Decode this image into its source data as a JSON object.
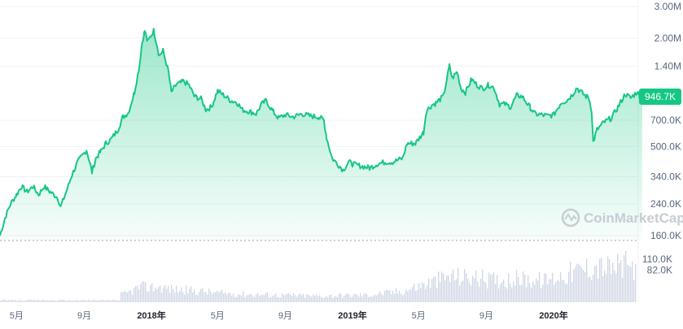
{
  "watermark": "CoinMarketCap",
  "colors": {
    "line": "#16c784",
    "volume": "#cfd6e4",
    "grid": "#eff2f5",
    "badge": "#16c784",
    "text": "#58667e"
  },
  "chart_data": [
    {
      "type": "area",
      "scale": "log",
      "ylim": [
        140000,
        3000000
      ],
      "grid": true,
      "y_ticks": [
        {
          "label": "3.00M",
          "value": 3000000
        },
        {
          "label": "2.00M",
          "value": 2000000
        },
        {
          "label": "1.40M",
          "value": 1400000
        },
        {
          "label": "700.0K",
          "value": 700000
        },
        {
          "label": "500.0K",
          "value": 500000
        },
        {
          "label": "340.0K",
          "value": 340000
        },
        {
          "label": "240.0K",
          "value": 240000
        },
        {
          "label": "160.0K",
          "value": 160000
        }
      ],
      "x_ticks": [
        {
          "label": "5月",
          "date": "2017-05-01",
          "bold": false
        },
        {
          "label": "9月",
          "date": "2017-09-01",
          "bold": false
        },
        {
          "label": "2018年",
          "date": "2018-01-01",
          "bold": true
        },
        {
          "label": "5月",
          "date": "2018-05-01",
          "bold": false
        },
        {
          "label": "9月",
          "date": "2018-09-01",
          "bold": false
        },
        {
          "label": "2019年",
          "date": "2019-01-01",
          "bold": true
        },
        {
          "label": "5月",
          "date": "2019-05-01",
          "bold": false
        },
        {
          "label": "9月",
          "date": "2019-09-01",
          "bold": false
        },
        {
          "label": "2020年",
          "date": "2020-01-01",
          "bold": true
        }
      ],
      "current_label": "946.7K",
      "current_value": 946700,
      "series": [
        {
          "points": [
            [
              "2017-04-01",
              160000
            ],
            [
              "2017-04-10",
              200000
            ],
            [
              "2017-04-20",
              240000
            ],
            [
              "2017-05-01",
              270000
            ],
            [
              "2017-05-10",
              300000
            ],
            [
              "2017-05-20",
              280000
            ],
            [
              "2017-05-31",
              300000
            ],
            [
              "2017-06-10",
              270000
            ],
            [
              "2017-06-20",
              300000
            ],
            [
              "2017-07-01",
              280000
            ],
            [
              "2017-07-15",
              260000
            ],
            [
              "2017-07-20",
              230000
            ],
            [
              "2017-08-01",
              290000
            ],
            [
              "2017-08-10",
              350000
            ],
            [
              "2017-08-20",
              410000
            ],
            [
              "2017-09-01",
              460000
            ],
            [
              "2017-09-05",
              480000
            ],
            [
              "2017-09-10",
              420000
            ],
            [
              "2017-09-15",
              360000
            ],
            [
              "2017-09-22",
              430000
            ],
            [
              "2017-10-01",
              470000
            ],
            [
              "2017-10-10",
              520000
            ],
            [
              "2017-10-20",
              550000
            ],
            [
              "2017-11-01",
              620000
            ],
            [
              "2017-11-10",
              730000
            ],
            [
              "2017-11-20",
              770000
            ],
            [
              "2017-12-01",
              1000000
            ],
            [
              "2017-12-10",
              1400000
            ],
            [
              "2017-12-15",
              1900000
            ],
            [
              "2017-12-20",
              2200000
            ],
            [
              "2017-12-25",
              1900000
            ],
            [
              "2018-01-01",
              2100000
            ],
            [
              "2018-01-05",
              2200000
            ],
            [
              "2018-01-10",
              1900000
            ],
            [
              "2018-01-15",
              1600000
            ],
            [
              "2018-01-22",
              1700000
            ],
            [
              "2018-02-01",
              1300000
            ],
            [
              "2018-02-06",
              1000000
            ],
            [
              "2018-02-15",
              1100000
            ],
            [
              "2018-02-28",
              1150000
            ],
            [
              "2018-03-10",
              1100000
            ],
            [
              "2018-03-20",
              950000
            ],
            [
              "2018-04-01",
              920000
            ],
            [
              "2018-04-10",
              800000
            ],
            [
              "2018-04-20",
              830000
            ],
            [
              "2018-05-01",
              1020000
            ],
            [
              "2018-05-15",
              950000
            ],
            [
              "2018-05-25",
              900000
            ],
            [
              "2018-06-05",
              880000
            ],
            [
              "2018-06-15",
              800000
            ],
            [
              "2018-06-30",
              780000
            ],
            [
              "2018-07-10",
              760000
            ],
            [
              "2018-07-20",
              860000
            ],
            [
              "2018-07-28",
              900000
            ],
            [
              "2018-08-10",
              780000
            ],
            [
              "2018-08-20",
              720000
            ],
            [
              "2018-09-01",
              750000
            ],
            [
              "2018-09-15",
              730000
            ],
            [
              "2018-10-01",
              760000
            ],
            [
              "2018-10-15",
              740000
            ],
            [
              "2018-11-01",
              730000
            ],
            [
              "2018-11-10",
              700000
            ],
            [
              "2018-11-15",
              560000
            ],
            [
              "2018-11-25",
              430000
            ],
            [
              "2018-12-05",
              400000
            ],
            [
              "2018-12-15",
              370000
            ],
            [
              "2018-12-25",
              410000
            ],
            [
              "2019-01-01",
              400000
            ],
            [
              "2019-01-15",
              390000
            ],
            [
              "2019-02-01",
              380000
            ],
            [
              "2019-02-15",
              400000
            ],
            [
              "2019-03-01",
              410000
            ],
            [
              "2019-03-15",
              410000
            ],
            [
              "2019-04-02",
              430000
            ],
            [
              "2019-04-10",
              520000
            ],
            [
              "2019-04-25",
              520000
            ],
            [
              "2019-05-10",
              600000
            ],
            [
              "2019-05-15",
              790000
            ],
            [
              "2019-05-25",
              850000
            ],
            [
              "2019-06-01",
              870000
            ],
            [
              "2019-06-15",
              950000
            ],
            [
              "2019-06-26",
              1400000
            ],
            [
              "2019-07-01",
              1200000
            ],
            [
              "2019-07-10",
              1300000
            ],
            [
              "2019-07-17",
              1050000
            ],
            [
              "2019-07-25",
              1000000
            ],
            [
              "2019-08-05",
              1180000
            ],
            [
              "2019-08-15",
              1100000
            ],
            [
              "2019-08-25",
              1050000
            ],
            [
              "2019-09-05",
              1100000
            ],
            [
              "2019-09-15",
              1060000
            ],
            [
              "2019-09-25",
              860000
            ],
            [
              "2019-10-05",
              860000
            ],
            [
              "2019-10-15",
              830000
            ],
            [
              "2019-10-26",
              960000
            ],
            [
              "2019-11-05",
              950000
            ],
            [
              "2019-11-20",
              820000
            ],
            [
              "2019-11-28",
              760000
            ],
            [
              "2019-12-10",
              750000
            ],
            [
              "2019-12-20",
              740000
            ],
            [
              "2020-01-01",
              750000
            ],
            [
              "2020-01-15",
              880000
            ],
            [
              "2020-01-25",
              900000
            ],
            [
              "2020-02-05",
              980000
            ],
            [
              "2020-02-12",
              1060000
            ],
            [
              "2020-02-25",
              970000
            ],
            [
              "2020-03-05",
              930000
            ],
            [
              "2020-03-10",
              800000
            ],
            [
              "2020-03-13",
              530000
            ],
            [
              "2020-03-20",
              620000
            ],
            [
              "2020-04-01",
              680000
            ],
            [
              "2020-04-15",
              720000
            ],
            [
              "2020-04-30",
              860000
            ],
            [
              "2020-05-10",
              980000
            ],
            [
              "2020-05-20",
              930000
            ],
            [
              "2020-05-31",
              1000000
            ],
            [
              "2020-06-05",
              960000
            ],
            [
              "2020-06-10",
              946700
            ]
          ]
        }
      ]
    },
    {
      "type": "bar",
      "name": "volume",
      "y_ticks": [
        {
          "label": "110.0K",
          "value": 110000
        },
        {
          "label": "82.0K",
          "value": 82000
        }
      ],
      "points": [
        [
          "2017-04-01",
          3000
        ],
        [
          "2017-06-01",
          4000
        ],
        [
          "2017-08-01",
          5000
        ],
        [
          "2017-10-01",
          8000
        ],
        [
          "2017-11-15",
          14000
        ],
        [
          "2017-12-10",
          25000
        ],
        [
          "2017-12-25",
          24000
        ],
        [
          "2018-01-10",
          25000
        ],
        [
          "2018-02-10",
          21000
        ],
        [
          "2018-03-15",
          19000
        ],
        [
          "2018-05-01",
          15000
        ],
        [
          "2018-06-15",
          13000
        ],
        [
          "2018-08-01",
          12000
        ],
        [
          "2018-09-15",
          11000
        ],
        [
          "2018-11-01",
          10000
        ],
        [
          "2018-12-15",
          11000
        ],
        [
          "2019-02-01",
          12000
        ],
        [
          "2019-04-01",
          18000
        ],
        [
          "2019-05-15",
          30000
        ],
        [
          "2019-06-26",
          42000
        ],
        [
          "2019-08-01",
          40000
        ],
        [
          "2019-09-15",
          36000
        ],
        [
          "2019-11-01",
          38000
        ],
        [
          "2019-12-15",
          35000
        ],
        [
          "2020-02-01",
          48000
        ],
        [
          "2020-03-13",
          58000
        ],
        [
          "2020-04-15",
          55000
        ],
        [
          "2020-05-10",
          60000
        ],
        [
          "2020-06-10",
          52000
        ]
      ]
    }
  ]
}
